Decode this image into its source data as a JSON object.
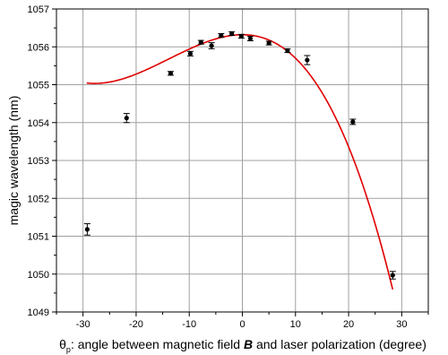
{
  "chart_data": {
    "type": "scatter",
    "title": "",
    "ylabel": "magic wavelength (nm)",
    "xlabel": {
      "symbol": "θ",
      "subscript": "p",
      "text1": ": angle between magnetic field ",
      "bold": "B",
      "text2": " and laser polarization (degree)"
    },
    "xlim": [
      -35,
      35
    ],
    "ylim": [
      1049,
      1057
    ],
    "xticks": [
      -30,
      -20,
      -10,
      0,
      10,
      20,
      30
    ],
    "yticks": [
      1049,
      1050,
      1051,
      1052,
      1053,
      1054,
      1055,
      1056,
      1057
    ],
    "grid": true,
    "series": [
      {
        "type": "scatter",
        "color": "#000000",
        "points": [
          {
            "x": -29.2,
            "y": 1051.18,
            "err": 0.15
          },
          {
            "x": -21.8,
            "y": 1054.12,
            "err": 0.12
          },
          {
            "x": -13.5,
            "y": 1055.3,
            "err": 0.05
          },
          {
            "x": -9.8,
            "y": 1055.82,
            "err": 0.06
          },
          {
            "x": -7.8,
            "y": 1056.12,
            "err": 0.05
          },
          {
            "x": -5.8,
            "y": 1056.03,
            "err": 0.08
          },
          {
            "x": -4.0,
            "y": 1056.3,
            "err": 0.05
          },
          {
            "x": -2.0,
            "y": 1056.35,
            "err": 0.05
          },
          {
            "x": -0.2,
            "y": 1056.28,
            "err": 0.05
          },
          {
            "x": 1.5,
            "y": 1056.22,
            "err": 0.06
          },
          {
            "x": 5.0,
            "y": 1056.1,
            "err": 0.05
          },
          {
            "x": 8.5,
            "y": 1055.9,
            "err": 0.05
          },
          {
            "x": 12.2,
            "y": 1055.65,
            "err": 0.12
          },
          {
            "x": 20.8,
            "y": 1054.02,
            "err": 0.07
          },
          {
            "x": 28.3,
            "y": 1049.97,
            "err": 0.1
          }
        ]
      },
      {
        "type": "line",
        "color": "#e00000",
        "fit": {
          "x0": 0,
          "y0": 1056.32,
          "a": -0.005,
          "b": -0.00012
        },
        "x_range": [
          -29.3,
          28.3
        ]
      }
    ]
  }
}
